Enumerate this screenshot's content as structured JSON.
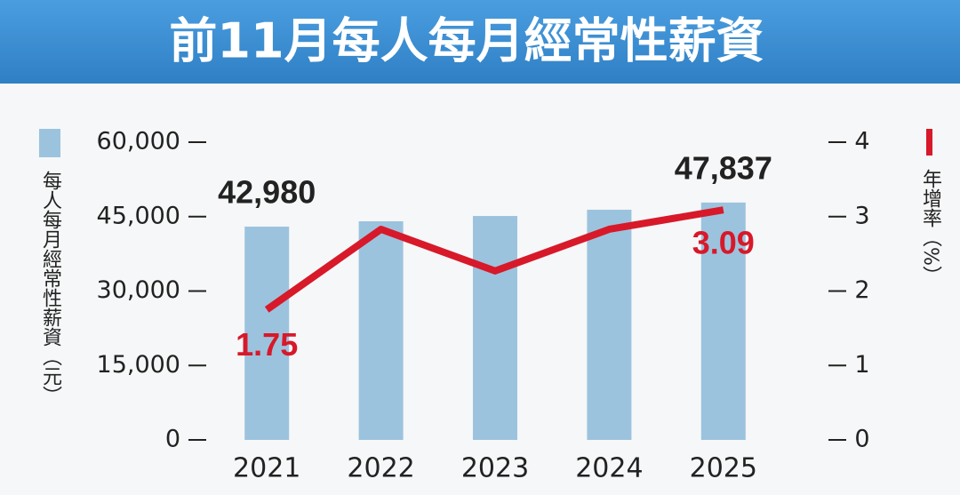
{
  "chart_data": {
    "type": "bar-line",
    "title": "前11月每人每月經常性薪資",
    "categories": [
      "2021",
      "2022",
      "2023",
      "2024",
      "2025"
    ],
    "series": [
      {
        "name": "每人每月經常性薪資（元）",
        "color": "#9cc3de",
        "type": "bar",
        "values": [
          42980,
          44060,
          45130,
          46390,
          47837
        ],
        "value_labels": [
          "42,980",
          null,
          null,
          null,
          "47,837"
        ]
      },
      {
        "name": "年增率（%）",
        "color": "#d7192a",
        "type": "line",
        "axis": "y2",
        "values": [
          1.75,
          2.83,
          2.27,
          2.83,
          3.09
        ],
        "value_labels": [
          "1.75",
          null,
          null,
          null,
          "3.09"
        ]
      }
    ],
    "ylim": [
      0,
      60000
    ],
    "yticks": [
      0,
      {
        "value": 15000,
        "label": "15,000"
      },
      {
        "value": 30000,
        "label": "30,000"
      },
      {
        "value": 45000,
        "label": "45,000"
      },
      {
        "value": 60000,
        "label": "60,000"
      }
    ],
    "y2lim": [
      0,
      4
    ],
    "y2ticks": [
      0,
      1,
      2,
      3,
      4
    ]
  }
}
